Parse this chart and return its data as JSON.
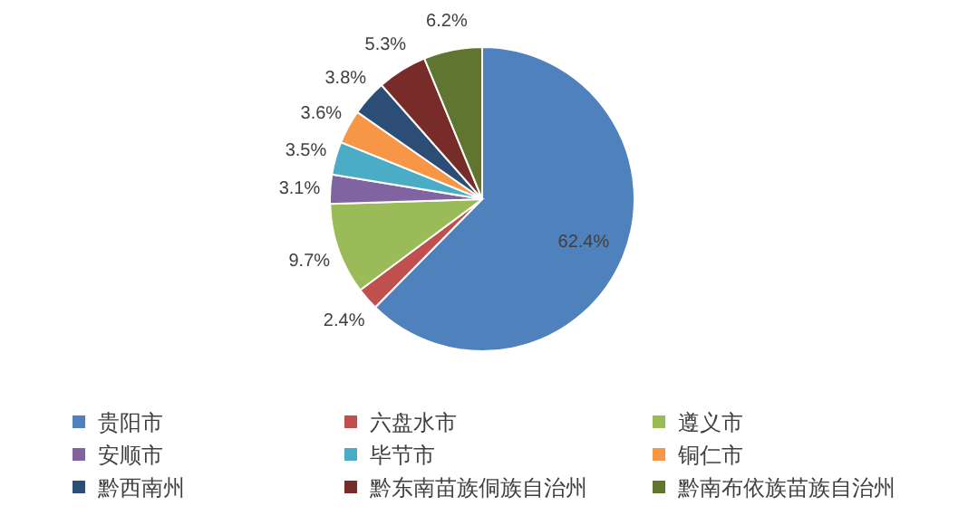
{
  "chart_data": {
    "type": "pie",
    "categories": [
      "贵阳市",
      "六盘水市",
      "遵义市",
      "安顺市",
      "毕节市",
      "铜仁市",
      "黔西南州",
      "黔东南苗族侗族自治州",
      "黔南布依族苗族自治州"
    ],
    "values": [
      62.4,
      2.4,
      9.7,
      3.1,
      3.5,
      3.6,
      3.8,
      5.3,
      6.2
    ],
    "colors": [
      "#4f81bd",
      "#c0504d",
      "#9bbb59",
      "#8064a2",
      "#4bacc6",
      "#f79646",
      "#2c4d75",
      "#772c2a",
      "#5f7530"
    ],
    "value_labels": [
      "62.4%",
      "2.4%",
      "9.7%",
      "3.1%",
      "3.5%",
      "3.6%",
      "3.8%",
      "5.3%",
      "6.2%"
    ],
    "legend": "bottom"
  }
}
